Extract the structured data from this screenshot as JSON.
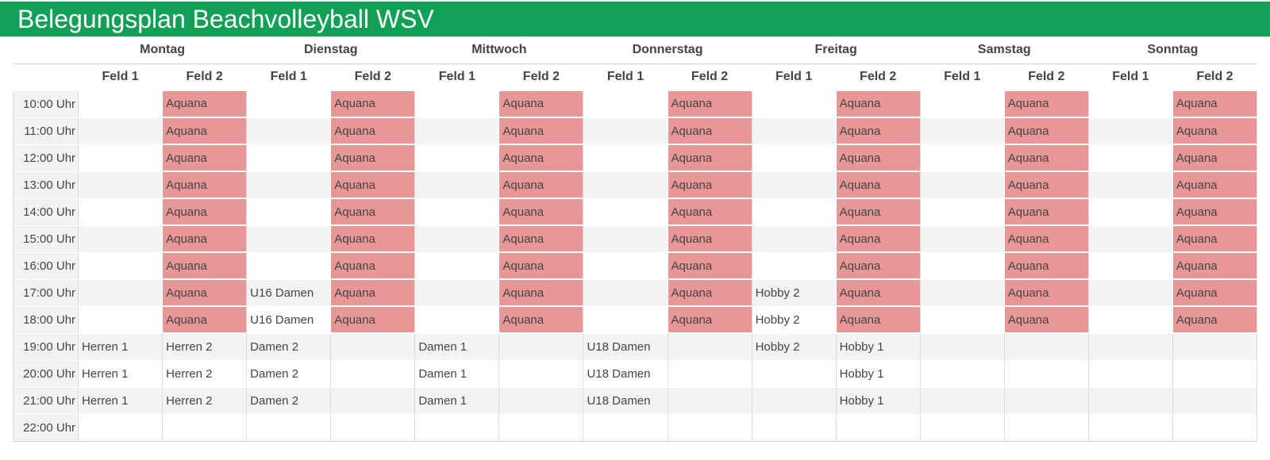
{
  "title": "Belegungsplan Beachvolleyball WSV",
  "days": [
    "Montag",
    "Dienstag",
    "Mittwoch",
    "Donnerstag",
    "Freitag",
    "Samstag",
    "Sonntag"
  ],
  "field_labels": [
    "Feld 1",
    "Feld 2"
  ],
  "colors": {
    "header_green": "#12a057",
    "booked_red": "#e89797"
  },
  "slots": [
    {
      "time": "10:00 Uhr",
      "cells": [
        "",
        "Aquana",
        "",
        "Aquana",
        "",
        "Aquana",
        "",
        "Aquana",
        "",
        "Aquana",
        "",
        "Aquana",
        "",
        "Aquana"
      ]
    },
    {
      "time": "11:00 Uhr",
      "cells": [
        "",
        "Aquana",
        "",
        "Aquana",
        "",
        "Aquana",
        "",
        "Aquana",
        "",
        "Aquana",
        "",
        "Aquana",
        "",
        "Aquana"
      ]
    },
    {
      "time": "12:00 Uhr",
      "cells": [
        "",
        "Aquana",
        "",
        "Aquana",
        "",
        "Aquana",
        "",
        "Aquana",
        "",
        "Aquana",
        "",
        "Aquana",
        "",
        "Aquana"
      ]
    },
    {
      "time": "13:00 Uhr",
      "cells": [
        "",
        "Aquana",
        "",
        "Aquana",
        "",
        "Aquana",
        "",
        "Aquana",
        "",
        "Aquana",
        "",
        "Aquana",
        "",
        "Aquana"
      ]
    },
    {
      "time": "14:00 Uhr",
      "cells": [
        "",
        "Aquana",
        "",
        "Aquana",
        "",
        "Aquana",
        "",
        "Aquana",
        "",
        "Aquana",
        "",
        "Aquana",
        "",
        "Aquana"
      ]
    },
    {
      "time": "15:00 Uhr",
      "cells": [
        "",
        "Aquana",
        "",
        "Aquana",
        "",
        "Aquana",
        "",
        "Aquana",
        "",
        "Aquana",
        "",
        "Aquana",
        "",
        "Aquana"
      ]
    },
    {
      "time": "16:00 Uhr",
      "cells": [
        "",
        "Aquana",
        "",
        "Aquana",
        "",
        "Aquana",
        "",
        "Aquana",
        "",
        "Aquana",
        "",
        "Aquana",
        "",
        "Aquana"
      ]
    },
    {
      "time": "17:00 Uhr",
      "cells": [
        "",
        "Aquana",
        "U16 Damen",
        "Aquana",
        "",
        "Aquana",
        "",
        "Aquana",
        "Hobby 2",
        "Aquana",
        "",
        "Aquana",
        "",
        "Aquana"
      ]
    },
    {
      "time": "18:00 Uhr",
      "cells": [
        "",
        "Aquana",
        "U16 Damen",
        "Aquana",
        "",
        "Aquana",
        "",
        "Aquana",
        "Hobby 2",
        "Aquana",
        "",
        "Aquana",
        "",
        "Aquana"
      ]
    },
    {
      "time": "19:00 Uhr",
      "cells": [
        "Herren 1",
        "Herren 2",
        "Damen 2",
        "",
        "Damen 1",
        "",
        "U18 Damen",
        "",
        "Hobby 2",
        "Hobby 1",
        "",
        "",
        "",
        ""
      ]
    },
    {
      "time": "20:00 Uhr",
      "cells": [
        "Herren 1",
        "Herren 2",
        "Damen 2",
        "",
        "Damen 1",
        "",
        "U18 Damen",
        "",
        "",
        "Hobby 1",
        "",
        "",
        "",
        ""
      ]
    },
    {
      "time": "21:00 Uhr",
      "cells": [
        "Herren 1",
        "Herren 2",
        "Damen 2",
        "",
        "Damen 1",
        "",
        "U18 Damen",
        "",
        "",
        "Hobby 1",
        "",
        "",
        "",
        ""
      ]
    },
    {
      "time": "22:00 Uhr",
      "cells": [
        "",
        "",
        "",
        "",
        "",
        "",
        "",
        "",
        "",
        "",
        "",
        "",
        "",
        ""
      ]
    }
  ]
}
